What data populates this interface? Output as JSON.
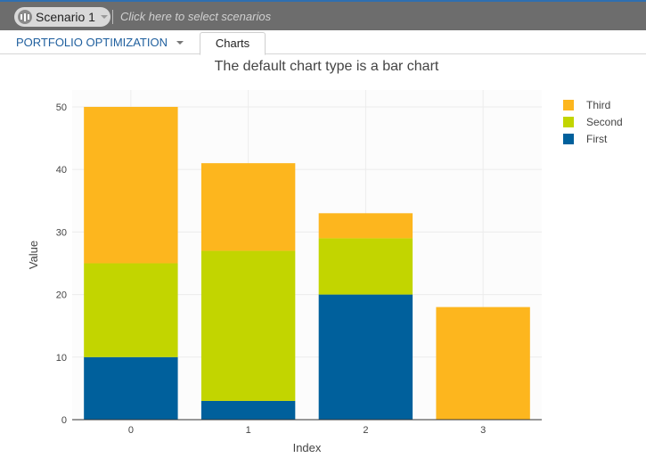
{
  "topbar": {
    "scenario_name": "Scenario 1",
    "scenario_hint": "Click here to select scenarios"
  },
  "nav": {
    "menu_label": "PORTFOLIO OPTIMIZATION",
    "active_tab": "Charts"
  },
  "colors": {
    "first": "#00609c",
    "second": "#c2d500",
    "third": "#fdb61e"
  },
  "chart_data": {
    "type": "bar",
    "stacked": true,
    "title": "The default chart type is a bar chart",
    "xlabel": "Index",
    "ylabel": "Value",
    "categories": [
      "0",
      "1",
      "2",
      "3"
    ],
    "series": [
      {
        "name": "First",
        "values": [
          10,
          3,
          20,
          0
        ]
      },
      {
        "name": "Second",
        "values": [
          15,
          24,
          9,
          0
        ]
      },
      {
        "name": "Third",
        "values": [
          25,
          14,
          4,
          18
        ]
      }
    ],
    "ylim": [
      0,
      50
    ],
    "yticks": [
      0,
      10,
      20,
      30,
      40,
      50
    ],
    "grid": true,
    "legend_position": "top-right",
    "legend_order": [
      "Third",
      "Second",
      "First"
    ]
  }
}
